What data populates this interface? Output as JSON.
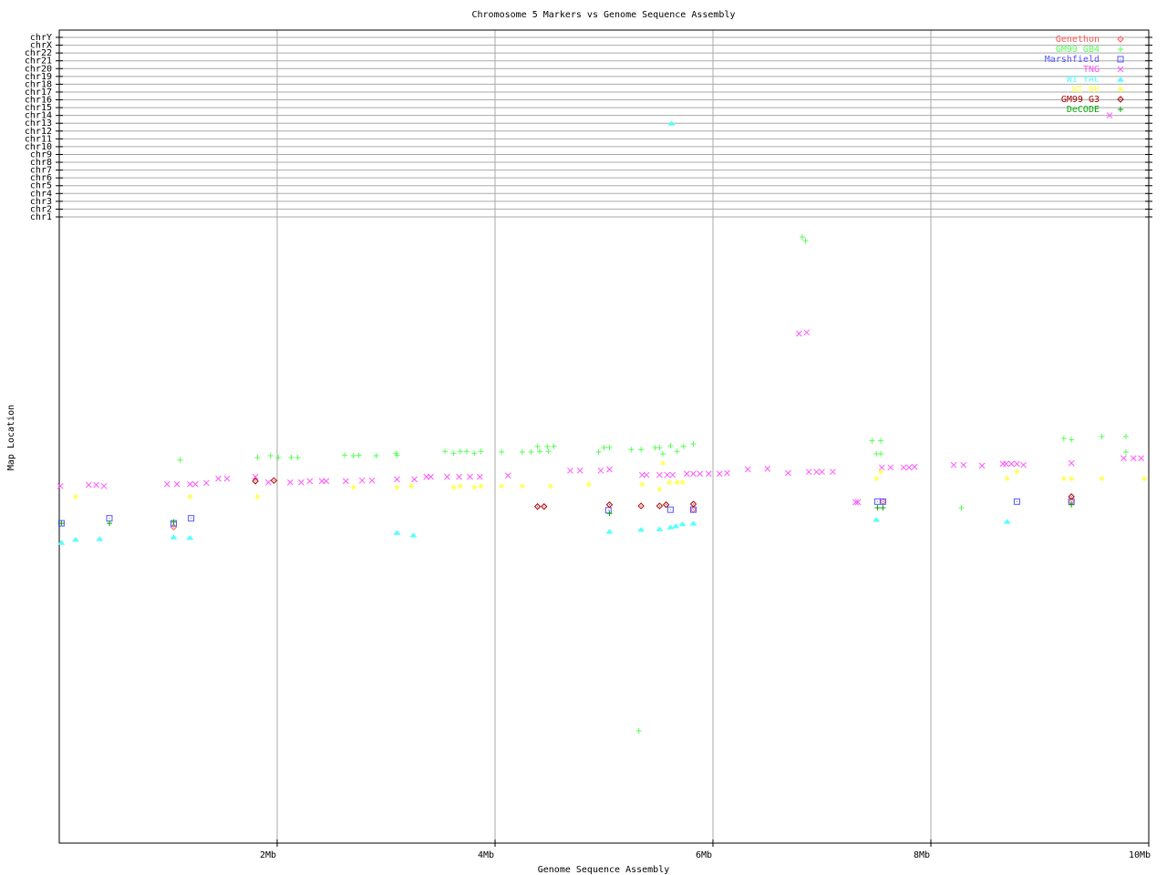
{
  "chart_data": {
    "type": "scatter",
    "title": "Chromosome 5 Markers vs Genome Sequence Assembly",
    "xlabel": "Genome Sequence Assembly",
    "ylabel": "Map Location",
    "xlim": [
      0,
      10
    ],
    "ylim": [
      0,
      100
    ],
    "x_ticks": [
      {
        "v": 2,
        "label": "2Mb"
      },
      {
        "v": 4,
        "label": "4Mb"
      },
      {
        "v": 6,
        "label": "6Mb"
      },
      {
        "v": 8,
        "label": "8Mb"
      },
      {
        "v": 10,
        "label": "10Mb"
      }
    ],
    "chromosome_rows": [
      "chr1",
      "chr2",
      "chr3",
      "chr4",
      "chr5",
      "chr6",
      "chr7",
      "chr8",
      "chr9",
      "chr10",
      "chr11",
      "chr12",
      "chr13",
      "chr14",
      "chr15",
      "chr16",
      "chr17",
      "chr18",
      "chr19",
      "chr20",
      "chr21",
      "chr22",
      "chrX",
      "chrY"
    ],
    "grid": true,
    "legend_position": "top-right",
    "series": [
      {
        "name": "Genethon",
        "color": "#ff5555",
        "marker": "diamond-dot",
        "points": [
          [
            1.05,
            51.0
          ],
          [
            5.82,
            53.8
          ],
          [
            7.56,
            55.1
          ],
          [
            9.29,
            55.1
          ]
        ]
      },
      {
        "name": "GM99 GB4",
        "color": "#55ff55",
        "marker": "plus",
        "points": [
          [
            1.11,
            61.8
          ],
          [
            1.82,
            62.2
          ],
          [
            1.94,
            62.5
          ],
          [
            2.01,
            62.2
          ],
          [
            2.13,
            62.2
          ],
          [
            2.19,
            62.2
          ],
          [
            2.62,
            62.6
          ],
          [
            2.7,
            62.5
          ],
          [
            2.75,
            62.6
          ],
          [
            2.91,
            62.5
          ],
          [
            3.09,
            62.9
          ],
          [
            3.1,
            62.6
          ],
          [
            3.54,
            63.2
          ],
          [
            3.62,
            62.9
          ],
          [
            3.68,
            63.2
          ],
          [
            3.74,
            63.2
          ],
          [
            3.81,
            62.9
          ],
          [
            3.87,
            63.2
          ],
          [
            4.06,
            63.1
          ],
          [
            4.25,
            63.1
          ],
          [
            4.33,
            63.1
          ],
          [
            4.39,
            64.0
          ],
          [
            4.41,
            63.2
          ],
          [
            4.48,
            64.0
          ],
          [
            4.49,
            63.2
          ],
          [
            4.54,
            64.0
          ],
          [
            4.95,
            63.1
          ],
          [
            5.0,
            63.8
          ],
          [
            5.05,
            63.8
          ],
          [
            5.25,
            63.5
          ],
          [
            5.34,
            63.5
          ],
          [
            5.47,
            63.8
          ],
          [
            5.51,
            63.8
          ],
          [
            5.54,
            62.8
          ],
          [
            5.61,
            64.1
          ],
          [
            5.67,
            63.2
          ],
          [
            5.73,
            64.0
          ],
          [
            5.82,
            64.4
          ],
          [
            6.82,
            97.8
          ],
          [
            6.85,
            97.2
          ],
          [
            5.32,
            18.1
          ],
          [
            7.46,
            64.9
          ],
          [
            7.54,
            64.9
          ],
          [
            7.5,
            62.8
          ],
          [
            7.54,
            62.8
          ],
          [
            8.28,
            54.1
          ],
          [
            9.22,
            65.3
          ],
          [
            9.29,
            65.1
          ],
          [
            9.57,
            65.6
          ],
          [
            9.79,
            65.6
          ],
          [
            9.79,
            63.1
          ]
        ]
      },
      {
        "name": "Marshfield",
        "color": "#5555ff",
        "marker": "square-dot",
        "points": [
          [
            0.02,
            51.6
          ],
          [
            0.46,
            52.4
          ],
          [
            1.05,
            51.6
          ],
          [
            1.21,
            52.4
          ],
          [
            5.04,
            53.7
          ],
          [
            5.61,
            53.8
          ],
          [
            5.82,
            53.8
          ],
          [
            7.51,
            55.1
          ],
          [
            7.56,
            55.1
          ],
          [
            8.79,
            55.1
          ],
          [
            9.29,
            55.1
          ]
        ]
      },
      {
        "name": "TNG",
        "color": "#ff55ff",
        "marker": "cross",
        "points": [
          [
            0.01,
            57.6
          ],
          [
            0.27,
            57.8
          ],
          [
            0.34,
            57.8
          ],
          [
            0.41,
            57.6
          ],
          [
            0.99,
            57.9
          ],
          [
            1.08,
            57.9
          ],
          [
            1.2,
            57.9
          ],
          [
            1.25,
            57.9
          ],
          [
            1.35,
            58.1
          ],
          [
            1.46,
            58.8
          ],
          [
            1.54,
            58.8
          ],
          [
            1.8,
            59.1
          ],
          [
            1.92,
            58.2
          ],
          [
            2.12,
            58.2
          ],
          [
            2.22,
            58.2
          ],
          [
            2.3,
            58.4
          ],
          [
            2.41,
            58.4
          ],
          [
            2.45,
            58.4
          ],
          [
            2.63,
            58.4
          ],
          [
            2.78,
            58.5
          ],
          [
            2.87,
            58.5
          ],
          [
            3.1,
            58.7
          ],
          [
            3.26,
            58.7
          ],
          [
            3.37,
            59.1
          ],
          [
            3.41,
            59.1
          ],
          [
            3.56,
            59.1
          ],
          [
            3.67,
            59.1
          ],
          [
            3.77,
            59.1
          ],
          [
            3.86,
            59.1
          ],
          [
            4.12,
            59.3
          ],
          [
            4.69,
            60.1
          ],
          [
            4.78,
            60.1
          ],
          [
            4.97,
            60.1
          ],
          [
            5.05,
            60.3
          ],
          [
            5.35,
            59.4
          ],
          [
            5.39,
            59.4
          ],
          [
            5.51,
            59.4
          ],
          [
            5.58,
            59.4
          ],
          [
            5.63,
            59.4
          ],
          [
            5.76,
            59.6
          ],
          [
            5.82,
            59.6
          ],
          [
            5.88,
            59.6
          ],
          [
            5.96,
            59.6
          ],
          [
            6.06,
            59.6
          ],
          [
            6.13,
            59.7
          ],
          [
            6.32,
            60.3
          ],
          [
            6.5,
            60.4
          ],
          [
            6.69,
            59.7
          ],
          [
            6.88,
            59.9
          ],
          [
            6.95,
            59.9
          ],
          [
            7.0,
            59.9
          ],
          [
            7.1,
            59.9
          ],
          [
            7.31,
            55.0
          ],
          [
            7.33,
            55.0
          ],
          [
            7.55,
            60.6
          ],
          [
            7.63,
            60.6
          ],
          [
            7.75,
            60.6
          ],
          [
            7.8,
            60.6
          ],
          [
            7.85,
            60.7
          ],
          [
            8.21,
            61.0
          ],
          [
            8.3,
            61.0
          ],
          [
            8.47,
            60.9
          ],
          [
            8.66,
            61.2
          ],
          [
            8.69,
            61.2
          ],
          [
            8.74,
            61.2
          ],
          [
            8.79,
            61.2
          ],
          [
            8.85,
            61.0
          ],
          [
            9.29,
            61.3
          ],
          [
            9.77,
            62.1
          ],
          [
            9.86,
            62.1
          ],
          [
            9.93,
            62.1
          ],
          [
            6.79,
            82.2
          ],
          [
            6.86,
            82.4
          ]
        ],
        "other_chromosome_points": [
          [
            9.64,
            "chr14"
          ]
        ]
      },
      {
        "name": "WI YAC",
        "color": "#55ffff",
        "marker": "triangle",
        "points": [
          [
            0.02,
            48.5
          ],
          [
            0.15,
            49.0
          ],
          [
            0.37,
            49.1
          ],
          [
            1.05,
            49.4
          ],
          [
            1.2,
            49.3
          ],
          [
            3.1,
            50.1
          ],
          [
            3.25,
            49.7
          ],
          [
            5.05,
            50.3
          ],
          [
            5.34,
            50.6
          ],
          [
            5.51,
            50.7
          ],
          [
            5.61,
            51.0
          ],
          [
            5.66,
            51.2
          ],
          [
            5.72,
            51.5
          ],
          [
            5.82,
            51.6
          ],
          [
            7.5,
            52.2
          ],
          [
            8.7,
            51.9
          ]
        ],
        "other_chromosome_points": [
          [
            5.62,
            "chr13"
          ]
        ]
      },
      {
        "name": "WI RH",
        "color": "#ffff55",
        "marker": "asterisk",
        "points": [
          [
            0.15,
            55.9
          ],
          [
            1.2,
            55.9
          ],
          [
            1.82,
            55.9
          ],
          [
            2.7,
            57.4
          ],
          [
            3.1,
            57.4
          ],
          [
            3.23,
            57.6
          ],
          [
            3.62,
            57.4
          ],
          [
            3.68,
            57.6
          ],
          [
            3.81,
            57.4
          ],
          [
            3.87,
            57.6
          ],
          [
            4.06,
            57.6
          ],
          [
            4.25,
            57.6
          ],
          [
            4.51,
            57.6
          ],
          [
            4.86,
            57.9
          ],
          [
            5.35,
            57.9
          ],
          [
            5.54,
            61.3
          ],
          [
            5.51,
            57.1
          ],
          [
            5.6,
            58.2
          ],
          [
            5.67,
            58.2
          ],
          [
            5.72,
            58.2
          ],
          [
            7.5,
            58.8
          ],
          [
            7.54,
            59.9
          ],
          [
            8.7,
            58.8
          ],
          [
            8.79,
            59.9
          ],
          [
            9.22,
            58.8
          ],
          [
            9.29,
            58.8
          ],
          [
            9.57,
            58.8
          ],
          [
            9.96,
            58.8
          ]
        ]
      },
      {
        "name": "GM99 G3",
        "color": "#aa0000",
        "marker": "diamond-dot",
        "points": [
          [
            1.8,
            58.4
          ],
          [
            1.97,
            58.5
          ],
          [
            4.39,
            54.3
          ],
          [
            4.45,
            54.3
          ],
          [
            5.05,
            54.6
          ],
          [
            5.34,
            54.4
          ],
          [
            5.51,
            54.4
          ],
          [
            5.57,
            54.6
          ],
          [
            5.82,
            54.7
          ],
          [
            9.29,
            55.9
          ]
        ]
      },
      {
        "name": "DeCODE",
        "color": "#00aa00",
        "marker": "plus",
        "points": [
          [
            0.02,
            51.6
          ],
          [
            0.46,
            51.6
          ],
          [
            1.05,
            51.8
          ],
          [
            5.05,
            53.2
          ],
          [
            7.51,
            54.1
          ],
          [
            7.56,
            54.1
          ],
          [
            9.29,
            54.6
          ]
        ]
      }
    ]
  }
}
